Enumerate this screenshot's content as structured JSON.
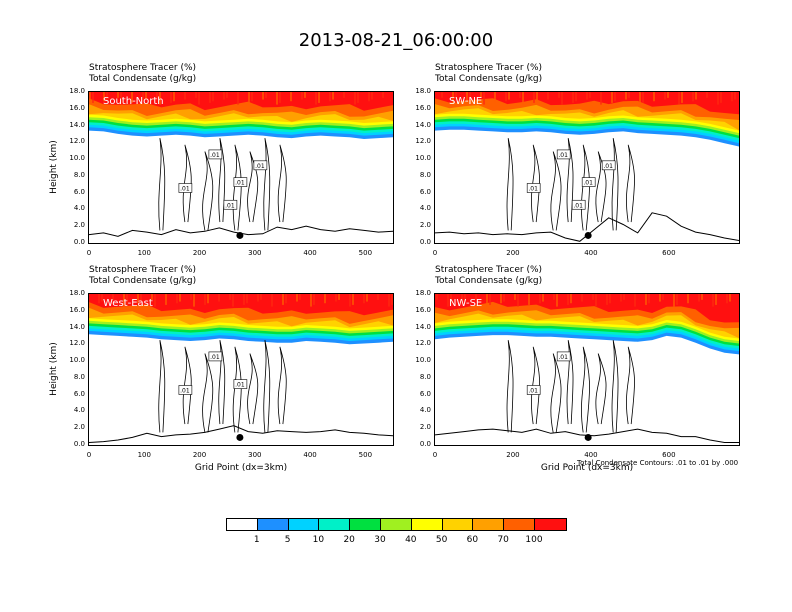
{
  "title": "2013-08-21_06:00:00",
  "chart_data": [
    {
      "type": "heatmap",
      "region": "South-North",
      "title_lines": [
        "Stratosphere Tracer   (%)",
        "Total Condensate   (g/kg)"
      ],
      "ylabel": "Height (km)",
      "xlabel": "",
      "xlim": [
        0,
        550
      ],
      "ylim": [
        0,
        18
      ],
      "xticks": [
        0,
        100,
        200,
        300,
        400,
        500
      ],
      "yticks": [
        "0.0",
        "2.0",
        "4.0",
        "6.0",
        "8.0",
        "10.0",
        "12.0",
        "14.0",
        "16.0",
        "18.0"
      ],
      "tracer_base_km": [
        13.4,
        13.3,
        13.0,
        12.8,
        12.7,
        12.8,
        12.9,
        12.8,
        12.6,
        12.7,
        12.8,
        12.9,
        12.8,
        12.6,
        12.5,
        12.7,
        12.8,
        12.7,
        12.6,
        12.4,
        12.5,
        12.6
      ],
      "terrain_km": [
        1.0,
        1.2,
        0.8,
        1.5,
        1.3,
        1.0,
        1.6,
        1.2,
        1.4,
        1.8,
        1.3,
        1.0,
        1.1,
        1.9,
        1.6,
        2.0,
        1.6,
        1.4,
        1.7,
        1.5,
        1.3,
        1.4
      ],
      "contour_labels": [
        ".01",
        ".01",
        ".01",
        ".01",
        ".01"
      ],
      "marker_x": 273
    },
    {
      "type": "heatmap",
      "region": "SW-NE",
      "title_lines": [
        "Stratosphere Tracer   (%)",
        "Total Condensate   (g/kg)"
      ],
      "ylabel": "",
      "xlabel": "",
      "xlim": [
        0,
        780
      ],
      "ylim": [
        0,
        18
      ],
      "xticks": [
        0,
        200,
        400,
        600
      ],
      "yticks": [
        "0.0",
        "2.0",
        "4.0",
        "6.0",
        "8.0",
        "10.0",
        "12.0",
        "14.0",
        "16.0",
        "18.0"
      ],
      "tracer_base_km": [
        13.4,
        13.5,
        13.5,
        13.4,
        13.3,
        13.2,
        13.2,
        13.3,
        13.2,
        13.0,
        12.9,
        13.0,
        13.2,
        13.3,
        13.1,
        13.0,
        12.9,
        12.8,
        12.6,
        12.3,
        11.9,
        11.5
      ],
      "terrain_km": [
        1.2,
        1.3,
        1.1,
        1.2,
        1.0,
        1.1,
        1.0,
        1.2,
        1.3,
        0.6,
        0.2,
        1.6,
        3.0,
        2.2,
        1.2,
        3.6,
        3.2,
        2.0,
        1.3,
        1.0,
        0.6,
        0.3
      ],
      "contour_labels": [
        ".01",
        ".01",
        ".01",
        ".01",
        ".01"
      ],
      "marker_x": 393
    },
    {
      "type": "heatmap",
      "region": "West-East",
      "title_lines": [
        "Stratosphere Tracer   (%)",
        "Total Condensate   (g/kg)"
      ],
      "ylabel": "Height (km)",
      "xlabel": "Grid Point (dx=3km)",
      "xlim": [
        0,
        550
      ],
      "ylim": [
        0,
        18
      ],
      "xticks": [
        0,
        100,
        200,
        300,
        400,
        500
      ],
      "yticks": [
        "0.0",
        "2.0",
        "4.0",
        "6.0",
        "8.0",
        "10.0",
        "12.0",
        "14.0",
        "16.0",
        "18.0"
      ],
      "tracer_base_km": [
        13.2,
        13.1,
        13.0,
        12.9,
        12.8,
        12.6,
        12.5,
        12.4,
        12.5,
        12.7,
        12.6,
        12.4,
        12.3,
        12.2,
        12.2,
        12.4,
        12.3,
        12.2,
        12.0,
        12.1,
        12.2,
        12.3
      ],
      "terrain_km": [
        0.3,
        0.4,
        0.6,
        0.9,
        1.4,
        1.0,
        1.2,
        1.3,
        1.5,
        1.9,
        2.3,
        1.6,
        1.4,
        1.7,
        1.6,
        1.5,
        1.6,
        1.8,
        1.5,
        1.4,
        1.2,
        1.1
      ],
      "contour_labels": [
        ".01",
        ".01",
        ".01"
      ],
      "marker_x": 273
    },
    {
      "type": "heatmap",
      "region": "NW-SE",
      "title_lines": [
        "Stratosphere Tracer   (%)",
        "Total Condensate   (g/kg)"
      ],
      "ylabel": "",
      "xlabel": "Grid Point (dx=3km)",
      "xlim": [
        0,
        780
      ],
      "ylim": [
        0,
        18
      ],
      "xticks": [
        0,
        200,
        400,
        600
      ],
      "yticks": [
        "0.0",
        "2.0",
        "4.0",
        "6.0",
        "8.0",
        "10.0",
        "12.0",
        "14.0",
        "16.0",
        "18.0"
      ],
      "tracer_base_km": [
        12.6,
        12.8,
        12.9,
        13.0,
        13.1,
        13.1,
        13.0,
        12.9,
        12.9,
        12.8,
        12.7,
        12.6,
        12.5,
        12.4,
        12.3,
        12.5,
        13.0,
        12.8,
        12.2,
        11.5,
        11.0,
        10.8
      ],
      "terrain_km": [
        1.2,
        1.4,
        1.6,
        1.8,
        1.9,
        1.7,
        1.5,
        1.9,
        1.4,
        1.6,
        1.2,
        1.1,
        1.3,
        1.6,
        1.9,
        1.5,
        1.4,
        1.0,
        1.0,
        0.6,
        0.3,
        0.3
      ],
      "contour_labels": [
        ".01",
        ".01"
      ],
      "marker_x": 393,
      "note": "Total Condensate Contours: .01 to .01 by .000"
    }
  ],
  "legend": {
    "colors": [
      "#ffffff",
      "#1e90ff",
      "#00d2ff",
      "#00f0c8",
      "#00e040",
      "#a0f020",
      "#ffff00",
      "#ffd200",
      "#ffa000",
      "#ff6000",
      "#ff1010"
    ],
    "labels": [
      "1",
      "5",
      "10",
      "20",
      "30",
      "40",
      "50",
      "60",
      "70",
      "100"
    ]
  }
}
